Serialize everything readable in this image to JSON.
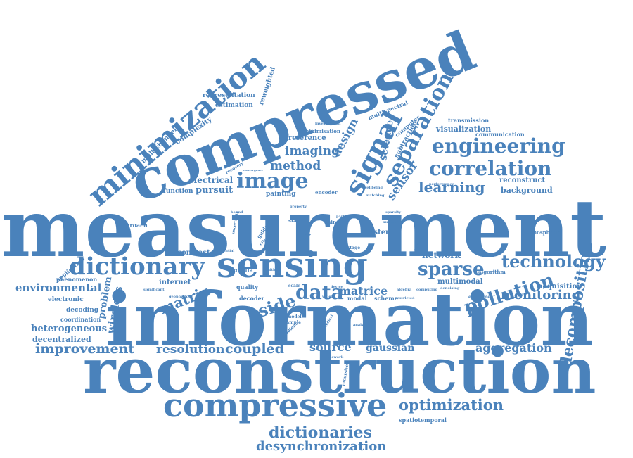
{
  "color": "#4a82bb",
  "words": [
    {
      "text": "measurement",
      "weight": 100,
      "orientation": "horizontal"
    },
    {
      "text": "information",
      "weight": 95,
      "orientation": "horizontal"
    },
    {
      "text": "reconstruction",
      "weight": 90,
      "orientation": "horizontal"
    },
    {
      "text": "compressed",
      "weight": 88,
      "orientation": "diagonal"
    },
    {
      "text": "sensing",
      "weight": 60,
      "orientation": "horizontal"
    },
    {
      "text": "minimization",
      "weight": 55,
      "orientation": "diagonal"
    },
    {
      "text": "compressive",
      "weight": 50,
      "orientation": "horizontal"
    },
    {
      "text": "signal",
      "weight": 45,
      "orientation": "diagonal"
    },
    {
      "text": "dictionary",
      "weight": 40,
      "orientation": "horizontal"
    },
    {
      "text": "image",
      "weight": 38,
      "orientation": "horizontal"
    },
    {
      "text": "separation",
      "weight": 35,
      "orientation": "diagonal"
    },
    {
      "text": "engineering",
      "weight": 35,
      "orientation": "horizontal"
    },
    {
      "text": "correlation",
      "weight": 34,
      "orientation": "horizontal"
    },
    {
      "text": "data",
      "weight": 34,
      "orientation": "horizontal"
    },
    {
      "text": "sparse",
      "weight": 32,
      "orientation": "horizontal"
    },
    {
      "text": "pollution",
      "weight": 33,
      "orientation": "diagonal"
    },
    {
      "text": "technology",
      "weight": 30,
      "orientation": "horizontal"
    },
    {
      "text": "side",
      "weight": 30,
      "orientation": "diagonal"
    },
    {
      "text": "decomposition",
      "weight": 30,
      "orientation": "vertical"
    },
    {
      "text": "optimization",
      "weight": 26,
      "orientation": "horizontal"
    },
    {
      "text": "dictionaries",
      "weight": 25,
      "orientation": "horizontal"
    },
    {
      "text": "desynchronization",
      "weight": 22,
      "orientation": "horizontal"
    },
    {
      "text": "improvement",
      "weight": 22,
      "orientation": "horizontal"
    },
    {
      "text": "resolution",
      "weight": 20,
      "orientation": "horizontal"
    },
    {
      "text": "coupled",
      "weight": 22,
      "orientation": "horizontal"
    },
    {
      "text": "source",
      "weight": 20,
      "orientation": "horizontal"
    },
    {
      "text": "gaussian",
      "weight": 17,
      "orientation": "horizontal"
    },
    {
      "text": "aggregation",
      "weight": 18,
      "orientation": "horizontal"
    },
    {
      "text": "monitoring",
      "weight": 20,
      "orientation": "horizontal"
    },
    {
      "text": "learning",
      "weight": 22,
      "orientation": "horizontal"
    },
    {
      "text": "matrix",
      "weight": 22,
      "orientation": "diagonal"
    },
    {
      "text": "matrice",
      "weight": 18,
      "orientation": "horizontal"
    },
    {
      "text": "method",
      "weight": 18,
      "orientation": "horizontal"
    },
    {
      "text": "imaging",
      "weight": 18,
      "orientation": "horizontal"
    },
    {
      "text": "design",
      "weight": 18,
      "orientation": "diagonal"
    },
    {
      "text": "sensor",
      "weight": 20,
      "orientation": "diagonal"
    },
    {
      "text": "science",
      "weight": 16,
      "orientation": "vertical"
    },
    {
      "text": "environmental",
      "weight": 16,
      "orientation": "horizontal"
    },
    {
      "text": "heterogeneous",
      "weight": 14,
      "orientation": "horizontal"
    },
    {
      "text": "wireless",
      "weight": 16,
      "orientation": "vertical"
    },
    {
      "text": "problem",
      "weight": 14,
      "orientation": "vertical"
    },
    {
      "text": "decentralized",
      "weight": 12,
      "orientation": "horizontal"
    },
    {
      "text": "network",
      "weight": 13,
      "orientation": "horizontal"
    },
    {
      "text": "multimodal",
      "weight": 11,
      "orientation": "horizontal"
    },
    {
      "text": "acquisition",
      "weight": 11,
      "orientation": "horizontal"
    },
    {
      "text": "visualization",
      "weight": 12,
      "orientation": "horizontal"
    },
    {
      "text": "background",
      "weight": 12,
      "orientation": "horizontal"
    },
    {
      "text": "reconstruct",
      "weight": 10,
      "orientation": "horizontal"
    },
    {
      "text": "electrical",
      "weight": 13,
      "orientation": "horizontal"
    },
    {
      "text": "pursuit",
      "weight": 14,
      "orientation": "horizontal"
    },
    {
      "text": "function",
      "weight": 10,
      "orientation": "horizontal"
    },
    {
      "text": "painting",
      "weight": 10,
      "orientation": "horizontal"
    },
    {
      "text": "reference",
      "weight": 11,
      "orientation": "horizontal"
    },
    {
      "text": "representation",
      "weight": 10,
      "orientation": "horizontal"
    },
    {
      "text": "estimation",
      "weight": 10,
      "orientation": "horizontal"
    },
    {
      "text": "complexity",
      "weight": 11,
      "orientation": "diagonal"
    },
    {
      "text": "reweighted",
      "weight": 10,
      "orientation": "vertical"
    },
    {
      "text": "multichannel",
      "weight": 10,
      "orientation": "diagonal"
    },
    {
      "text": "multispectral",
      "weight": 9,
      "orientation": "diagonal"
    },
    {
      "text": "computer",
      "weight": 9,
      "orientation": "diagonal"
    },
    {
      "text": "subtraction",
      "weight": 9,
      "orientation": "diagonal"
    },
    {
      "text": "transmission",
      "weight": 8,
      "orientation": "horizontal"
    },
    {
      "text": "communication",
      "weight": 8,
      "orientation": "horizontal"
    },
    {
      "text": "minimisation",
      "weight": 8,
      "orientation": "horizontal"
    },
    {
      "text": "investigation",
      "weight": 6,
      "orientation": "horizontal"
    },
    {
      "text": "performance",
      "weight": 6,
      "orientation": "horizontal"
    },
    {
      "text": "computing",
      "weight": 6,
      "orientation": "horizontal"
    },
    {
      "text": "contrast",
      "weight": 11,
      "orientation": "horizontal"
    },
    {
      "text": "internet",
      "weight": 11,
      "orientation": "horizontal"
    },
    {
      "text": "electronic",
      "weight": 10,
      "orientation": "horizontal"
    },
    {
      "text": "decoding",
      "weight": 10,
      "orientation": "horizontal"
    },
    {
      "text": "coordination",
      "weight": 9,
      "orientation": "horizontal"
    },
    {
      "text": "phenomenon",
      "weight": 9,
      "orientation": "horizontal"
    },
    {
      "text": "application",
      "weight": 9,
      "orientation": "diagonal"
    },
    {
      "text": "approach",
      "weight": 9,
      "orientation": "horizontal"
    },
    {
      "text": "copula",
      "weight": 9,
      "orientation": "horizontal"
    },
    {
      "text": "quality",
      "weight": 9,
      "orientation": "horizontal"
    },
    {
      "text": "decoder",
      "weight": 9,
      "orientation": "horizontal"
    },
    {
      "text": "scheme",
      "weight": 9,
      "orientation": "horizontal"
    },
    {
      "text": "system",
      "weight": 11,
      "orientation": "horizontal"
    },
    {
      "text": "modal",
      "weight": 9,
      "orientation": "horizontal"
    },
    {
      "text": "atmospheric",
      "weight": 8,
      "orientation": "horizontal"
    },
    {
      "text": "algorithm",
      "weight": 8,
      "orientation": "horizontal"
    },
    {
      "text": "experiment",
      "weight": 7,
      "orientation": "horizontal"
    },
    {
      "text": "stage",
      "weight": 7,
      "orientation": "horizontal"
    },
    {
      "text": "state",
      "weight": 8,
      "orientation": "horizontal"
    },
    {
      "text": "thing",
      "weight": 8,
      "orientation": "horizontal"
    },
    {
      "text": "basis",
      "weight": 9,
      "orientation": "vertical"
    },
    {
      "text": "prior",
      "weight": 10,
      "orientation": "diagonal"
    },
    {
      "text": "encoder",
      "weight": 8,
      "orientation": "horizontal"
    },
    {
      "text": "recovery",
      "weight": 7,
      "orientation": "diagonal"
    },
    {
      "text": "recursive",
      "weight": 7,
      "orientation": "vertical"
    },
    {
      "text": "model",
      "weight": 7,
      "orientation": "horizontal"
    },
    {
      "text": "sample",
      "weight": 7,
      "orientation": "horizontal"
    },
    {
      "text": "gradient",
      "weight": 7,
      "orientation": "diagonal"
    },
    {
      "text": "geophysics",
      "weight": 6,
      "orientation": "horizontal"
    },
    {
      "text": "guidance",
      "weight": 8,
      "orientation": "diagonal"
    },
    {
      "text": "scale",
      "weight": 7,
      "orientation": "horizontal"
    },
    {
      "text": "width",
      "weight": 6,
      "orientation": "horizontal"
    },
    {
      "text": "wellbeing",
      "weight": 6,
      "orientation": "horizontal"
    },
    {
      "text": "sequential",
      "weight": 6,
      "orientation": "horizontal"
    },
    {
      "text": "framework",
      "weight": 6,
      "orientation": "horizontal"
    },
    {
      "text": "number",
      "weight": 6,
      "orientation": "horizontal"
    },
    {
      "text": "denoising",
      "weight": 6,
      "orientation": "horizontal"
    },
    {
      "text": "probability",
      "weight": 5,
      "orientation": "diagonal"
    },
    {
      "text": "restricted",
      "weight": 5,
      "orientation": "horizontal"
    },
    {
      "text": "analysis",
      "weight": 5,
      "orientation": "horizontal"
    },
    {
      "text": "medical",
      "weight": 5,
      "orientation": "diagonal"
    },
    {
      "text": "significant",
      "weight": 5,
      "orientation": "horizontal"
    },
    {
      "text": "algebra",
      "weight": 5,
      "orientation": "horizontal"
    },
    {
      "text": "spatiotemporal",
      "weight": 8,
      "orientation": "horizontal"
    },
    {
      "text": "bound",
      "weight": 5,
      "orientation": "horizontal"
    },
    {
      "text": "uncertainty",
      "weight": 5,
      "orientation": "vertical"
    },
    {
      "text": "device",
      "weight": 5,
      "orientation": "horizontal"
    },
    {
      "text": "weight",
      "weight": 5,
      "orientation": "horizontal"
    },
    {
      "text": "convergence",
      "weight": 4,
      "orientation": "horizontal"
    },
    {
      "text": "video",
      "weight": 6,
      "orientation": "horizontal"
    },
    {
      "text": "citizen",
      "weight": 6,
      "orientation": "diagonal"
    },
    {
      "text": "property",
      "weight": 5,
      "orientation": "horizontal"
    },
    {
      "text": "particle",
      "weight": 5,
      "orientation": "horizontal"
    },
    {
      "text": "sparsity",
      "weight": 5,
      "orientation": "horizontal"
    },
    {
      "text": "matching",
      "weight": 5,
      "orientation": "horizontal"
    }
  ]
}
